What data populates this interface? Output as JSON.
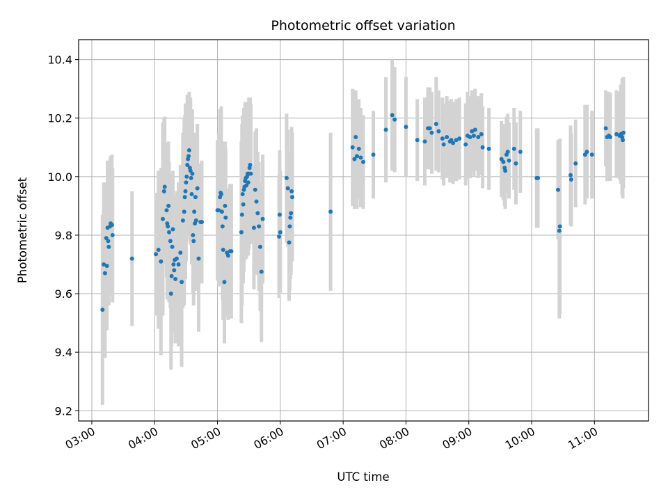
{
  "chart_data": {
    "type": "scatter",
    "title": "Photometric offset variation",
    "xlabel": "UTC time",
    "ylabel": "Photometric offset",
    "x_units": "hours UTC",
    "xlim": [
      2.79,
      11.86
    ],
    "ylim": [
      9.165,
      10.468
    ],
    "xticks": [
      3,
      4,
      5,
      6,
      7,
      8,
      9,
      10,
      11
    ],
    "xtick_labels": [
      "03:00",
      "04:00",
      "05:00",
      "06:00",
      "07:00",
      "08:00",
      "09:00",
      "10:00",
      "11:00"
    ],
    "yticks": [
      9.2,
      9.4,
      9.6,
      9.8,
      10.0,
      10.2,
      10.4
    ],
    "ytick_labels": [
      "9.2",
      "9.4",
      "9.6",
      "9.8",
      "10.0",
      "10.2",
      "10.4"
    ],
    "grid": true,
    "colors": {
      "points": "#1f77b4",
      "error_bars": "#d3d3d3"
    },
    "series": [
      {
        "points": [
          [
            3.17,
            9.545,
            0.325
          ],
          [
            3.19,
            9.7,
            0.28
          ],
          [
            3.21,
            9.67,
            0.29
          ],
          [
            3.23,
            9.79,
            0.19
          ],
          [
            3.24,
            9.695,
            0.22
          ],
          [
            3.25,
            9.825,
            0.23
          ],
          [
            3.26,
            9.78,
            0.2
          ],
          [
            3.27,
            9.76,
            0.2
          ],
          [
            3.29,
            9.83,
            0.23
          ],
          [
            3.3,
            9.84,
            0.23
          ],
          [
            3.32,
            9.835,
            0.24
          ],
          [
            3.33,
            9.8,
            0.23
          ],
          [
            3.64,
            9.72,
            0.23
          ],
          [
            4.02,
            9.735,
            0.21
          ],
          [
            4.06,
            9.75,
            0.27
          ],
          [
            4.1,
            9.71,
            0.32
          ],
          [
            4.13,
            9.855,
            0.33
          ],
          [
            4.15,
            9.95,
            0.25
          ],
          [
            4.16,
            9.965,
            0.24
          ],
          [
            4.19,
            9.885,
            0.23
          ],
          [
            4.2,
            9.84,
            0.26
          ],
          [
            4.21,
            9.83,
            0.2
          ],
          [
            4.22,
            9.9,
            0.22
          ],
          [
            4.23,
            9.81,
            0.24
          ],
          [
            4.25,
            9.78,
            0.23
          ],
          [
            4.26,
            9.6,
            0.26
          ],
          [
            4.27,
            9.66,
            0.24
          ],
          [
            4.28,
            9.76,
            0.22
          ],
          [
            4.29,
            9.82,
            0.2
          ],
          [
            4.3,
            9.7,
            0.23
          ],
          [
            4.31,
            9.68,
            0.21
          ],
          [
            4.32,
            9.715,
            0.22
          ],
          [
            4.33,
            9.65,
            0.22
          ],
          [
            4.35,
            9.72,
            0.23
          ],
          [
            4.38,
            9.7,
            0.28
          ],
          [
            4.41,
            9.74,
            0.3
          ],
          [
            4.43,
            9.64,
            0.29
          ],
          [
            4.45,
            9.85,
            0.3
          ],
          [
            4.47,
            9.88,
            0.32
          ],
          [
            4.48,
            9.93,
            0.28
          ],
          [
            4.49,
            9.95,
            0.3
          ],
          [
            4.5,
            9.98,
            0.27
          ],
          [
            4.51,
            10.0,
            0.22
          ],
          [
            4.52,
            10.04,
            0.24
          ],
          [
            4.53,
            10.06,
            0.22
          ],
          [
            4.54,
            10.07,
            0.2
          ],
          [
            4.55,
            10.09,
            0.2
          ],
          [
            4.56,
            10.03,
            0.22
          ],
          [
            4.57,
            10.02,
            0.25
          ],
          [
            4.58,
            9.995,
            0.23
          ],
          [
            4.59,
            9.94,
            0.24
          ],
          [
            4.6,
            10.01,
            0.22
          ],
          [
            4.61,
            9.8,
            0.2
          ],
          [
            4.62,
            9.78,
            0.22
          ],
          [
            4.63,
            9.88,
            0.23
          ],
          [
            4.64,
            9.84,
            0.2
          ],
          [
            4.65,
            9.93,
            0.22
          ],
          [
            4.66,
            9.85,
            0.24
          ],
          [
            4.68,
            9.96,
            0.22
          ],
          [
            4.7,
            9.72,
            0.25
          ],
          [
            4.73,
            9.845,
            0.2
          ],
          [
            4.75,
            9.845,
            0.21
          ],
          [
            5.0,
            9.885,
            0.24
          ],
          [
            5.02,
            9.885,
            0.26
          ],
          [
            5.04,
            9.93,
            0.3
          ],
          [
            5.05,
            9.945,
            0.28
          ],
          [
            5.06,
            9.94,
            0.3
          ],
          [
            5.07,
            9.88,
            0.24
          ],
          [
            5.08,
            9.83,
            0.25
          ],
          [
            5.09,
            9.75,
            0.24
          ],
          [
            5.11,
            9.64,
            0.21
          ],
          [
            5.12,
            9.9,
            0.22
          ],
          [
            5.13,
            9.86,
            0.24
          ],
          [
            5.15,
            9.74,
            0.22
          ],
          [
            5.17,
            9.73,
            0.22
          ],
          [
            5.2,
            9.745,
            0.23
          ],
          [
            5.22,
            9.745,
            0.23
          ],
          [
            5.38,
            9.81,
            0.31
          ],
          [
            5.39,
            9.87,
            0.31
          ],
          [
            5.4,
            9.94,
            0.27
          ],
          [
            5.41,
            9.905,
            0.27
          ],
          [
            5.42,
            9.955,
            0.28
          ],
          [
            5.43,
            9.965,
            0.24
          ],
          [
            5.44,
            9.985,
            0.27
          ],
          [
            5.45,
            9.995,
            0.26
          ],
          [
            5.46,
            9.97,
            0.25
          ],
          [
            5.47,
            10.0,
            0.22
          ],
          [
            5.48,
            10.01,
            0.24
          ],
          [
            5.49,
            9.98,
            0.25
          ],
          [
            5.5,
            10.01,
            0.26
          ],
          [
            5.51,
            10.03,
            0.24
          ],
          [
            5.52,
            10.04,
            0.23
          ],
          [
            5.53,
            10.01,
            0.24
          ],
          [
            5.58,
            9.825,
            0.21
          ],
          [
            5.6,
            9.955,
            0.2
          ],
          [
            5.62,
            9.915,
            0.25
          ],
          [
            5.64,
            9.875,
            0.21
          ],
          [
            5.66,
            9.83,
            0.22
          ],
          [
            5.68,
            9.76,
            0.22
          ],
          [
            5.7,
            9.675,
            0.24
          ],
          [
            5.72,
            9.855,
            0.22
          ],
          [
            5.98,
            9.795,
            0.21
          ],
          [
            6.0,
            9.81,
            0.21
          ],
          [
            5.99,
            9.87,
            0.22
          ],
          [
            6.1,
            9.995,
            0.22
          ],
          [
            6.12,
            9.96,
            0.2
          ],
          [
            6.14,
            9.775,
            0.2
          ],
          [
            6.15,
            9.83,
            0.22
          ],
          [
            6.16,
            9.86,
            0.21
          ],
          [
            6.17,
            9.875,
            0.21
          ],
          [
            6.18,
            9.95,
            0.22
          ],
          [
            6.19,
            9.93,
            0.22
          ],
          [
            6.8,
            9.88,
            0.27
          ],
          [
            7.15,
            10.1,
            0.2
          ],
          [
            7.18,
            10.06,
            0.17
          ],
          [
            7.2,
            10.135,
            0.16
          ],
          [
            7.22,
            10.07,
            0.18
          ],
          [
            7.25,
            10.095,
            0.17
          ],
          [
            7.28,
            10.065,
            0.17
          ],
          [
            7.32,
            10.05,
            0.16
          ],
          [
            7.48,
            10.075,
            0.15
          ],
          [
            7.68,
            10.16,
            0.18
          ],
          [
            7.78,
            10.21,
            0.19
          ],
          [
            7.82,
            10.195,
            0.18
          ],
          [
            8.0,
            10.17,
            0.17
          ],
          [
            8.18,
            10.125,
            0.14
          ],
          [
            8.3,
            10.12,
            0.15
          ],
          [
            8.35,
            10.165,
            0.14
          ],
          [
            8.38,
            10.165,
            0.14
          ],
          [
            8.41,
            10.15,
            0.14
          ],
          [
            8.48,
            10.18,
            0.16
          ],
          [
            8.52,
            10.155,
            0.14
          ],
          [
            8.58,
            10.13,
            0.14
          ],
          [
            8.6,
            10.11,
            0.14
          ],
          [
            8.65,
            10.135,
            0.14
          ],
          [
            8.7,
            10.12,
            0.14
          ],
          [
            8.72,
            10.125,
            0.14
          ],
          [
            8.75,
            10.115,
            0.14
          ],
          [
            8.8,
            10.125,
            0.14
          ],
          [
            8.85,
            10.13,
            0.14
          ],
          [
            8.95,
            10.11,
            0.14
          ],
          [
            8.98,
            10.14,
            0.15
          ],
          [
            9.02,
            10.135,
            0.14
          ],
          [
            9.05,
            10.155,
            0.14
          ],
          [
            9.08,
            10.14,
            0.14
          ],
          [
            9.1,
            10.16,
            0.14
          ],
          [
            9.15,
            10.135,
            0.14
          ],
          [
            9.2,
            10.145,
            0.14
          ],
          [
            9.22,
            10.1,
            0.14
          ],
          [
            9.32,
            10.095,
            0.14
          ],
          [
            9.52,
            10.06,
            0.13
          ],
          [
            9.55,
            10.05,
            0.13
          ],
          [
            9.57,
            10.03,
            0.13
          ],
          [
            9.58,
            10.02,
            0.13
          ],
          [
            9.6,
            10.075,
            0.13
          ],
          [
            9.62,
            10.085,
            0.13
          ],
          [
            9.64,
            10.055,
            0.13
          ],
          [
            9.72,
            10.095,
            0.14
          ],
          [
            9.75,
            10.045,
            0.14
          ],
          [
            9.82,
            10.085,
            0.14
          ],
          [
            10.08,
            9.995,
            0.17
          ],
          [
            10.1,
            9.995,
            0.17
          ],
          [
            10.42,
            9.955,
            0.17
          ],
          [
            10.44,
            9.815,
            0.3
          ],
          [
            10.45,
            9.83,
            0.3
          ],
          [
            10.62,
            10.005,
            0.17
          ],
          [
            10.63,
            9.99,
            0.16
          ],
          [
            10.7,
            10.045,
            0.15
          ],
          [
            10.85,
            10.075,
            0.17
          ],
          [
            10.88,
            10.085,
            0.16
          ],
          [
            10.96,
            10.075,
            0.15
          ],
          [
            11.18,
            10.165,
            0.13
          ],
          [
            11.2,
            10.135,
            0.15
          ],
          [
            11.23,
            10.14,
            0.15
          ],
          [
            11.25,
            10.135,
            0.15
          ],
          [
            11.35,
            10.145,
            0.15
          ],
          [
            11.4,
            10.14,
            0.15
          ],
          [
            11.42,
            10.145,
            0.17
          ],
          [
            11.44,
            10.135,
            0.2
          ],
          [
            11.45,
            10.125,
            0.2
          ],
          [
            11.46,
            10.15,
            0.19
          ]
        ]
      }
    ]
  }
}
